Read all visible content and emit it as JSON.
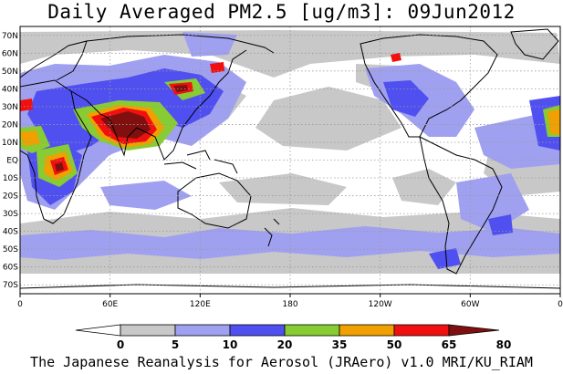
{
  "title": "Daily Averaged PM2.5 [ug/m3]: 09Jun2012",
  "footer": "The Japanese Reanalysis for Aerosol (JRAero) v1.0 MRI/KU_RIAM",
  "map": {
    "projection": "equirectangular",
    "lon_range": [
      0,
      360
    ],
    "lat_range": [
      -75,
      75
    ],
    "lat_labels": [
      "70N",
      "60N",
      "50N",
      "40N",
      "30N",
      "20N",
      "10N",
      "EQ",
      "10S",
      "20S",
      "30S",
      "40S",
      "50S",
      "60S",
      "70S"
    ],
    "lon_labels": [
      "0",
      "60E",
      "120E",
      "180",
      "120W",
      "60W",
      "0"
    ],
    "gridlines": "dotted"
  },
  "colorbar": {
    "levels": [
      "0",
      "5",
      "10",
      "20",
      "35",
      "50",
      "65",
      "80"
    ],
    "colors": [
      "#ffffff",
      "#c8c8c8",
      "#a0a0f0",
      "#5050f0",
      "#88cc33",
      "#f0a000",
      "#f01010",
      "#801010"
    ]
  }
}
